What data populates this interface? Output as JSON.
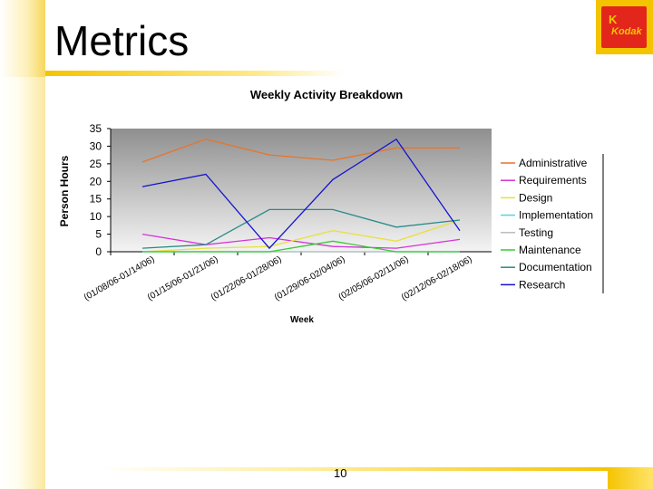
{
  "slide": {
    "title": "Metrics",
    "page_number": "10",
    "logo_text": "Kodak"
  },
  "chart_data": {
    "type": "line",
    "title": "Weekly Activity Breakdown",
    "xlabel": "Week",
    "ylabel": "Person Hours",
    "ylim": [
      0,
      35
    ],
    "yticks": [
      0,
      5,
      10,
      15,
      20,
      25,
      30,
      35
    ],
    "grid": "none",
    "background": "gray gradient",
    "legend_position": "right",
    "categories": [
      "(01/08/06-01/14/06)",
      "(01/15/06-01/21/06)",
      "(01/22/06-01/28/06)",
      "(01/29/06-02/04/06)",
      "(02/05/06-02/11/06)",
      "(02/12/06-02/18/06)"
    ],
    "series": [
      {
        "name": "Administrative",
        "color": "#e8742a",
        "values": [
          25.5,
          32,
          27.5,
          26,
          29.5,
          29.5
        ]
      },
      {
        "name": "Requirements",
        "color": "#d633d6",
        "values": [
          5,
          2,
          4,
          1.5,
          1,
          3.5
        ]
      },
      {
        "name": "Design",
        "color": "#e8e040",
        "values": [
          0,
          1,
          1.5,
          6,
          3,
          9
        ]
      },
      {
        "name": "Implementation",
        "color": "#55d6e0",
        "values": [
          0,
          0,
          0,
          0,
          0,
          0
        ]
      },
      {
        "name": "Testing",
        "color": "#bbbbbb",
        "values": [
          0,
          0,
          0,
          0,
          0,
          0
        ]
      },
      {
        "name": "Maintenance",
        "color": "#33cc33",
        "values": [
          0,
          0,
          0,
          3,
          0,
          0
        ]
      },
      {
        "name": "Documentation",
        "color": "#2a8a8a",
        "values": [
          1,
          2,
          12,
          12,
          7,
          9
        ]
      },
      {
        "name": "Research",
        "color": "#1414d0",
        "values": [
          18.5,
          22,
          1,
          20.5,
          32,
          6
        ]
      }
    ]
  }
}
